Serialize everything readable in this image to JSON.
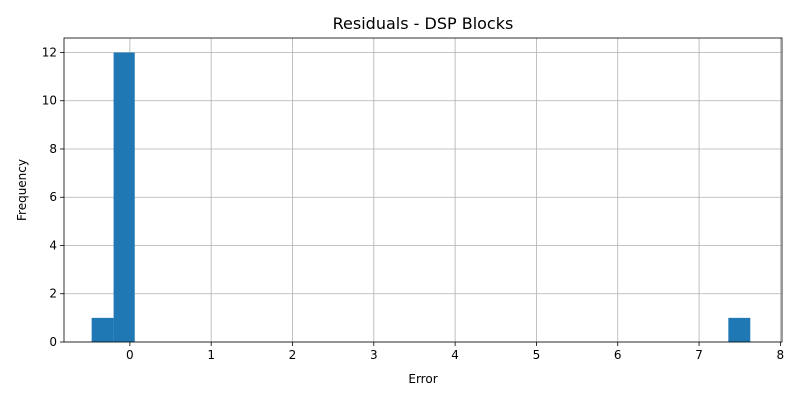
{
  "chart_data": {
    "type": "bar",
    "title": "Residuals - DSP Blocks",
    "xlabel": "Error",
    "ylabel": "Frequency",
    "xlim": [
      -0.81,
      8.02
    ],
    "ylim": [
      0,
      12.6
    ],
    "xticks": [
      0,
      1,
      2,
      3,
      4,
      5,
      6,
      7,
      8
    ],
    "yticks": [
      0,
      2,
      4,
      6,
      8,
      10,
      12
    ],
    "grid": true,
    "bar_color": "#1f77b4",
    "bins": [
      {
        "x0": -0.47,
        "x1": -0.2,
        "count": 1
      },
      {
        "x0": -0.2,
        "x1": 0.06,
        "count": 12
      },
      {
        "x0": 7.36,
        "x1": 7.63,
        "count": 1
      }
    ]
  }
}
